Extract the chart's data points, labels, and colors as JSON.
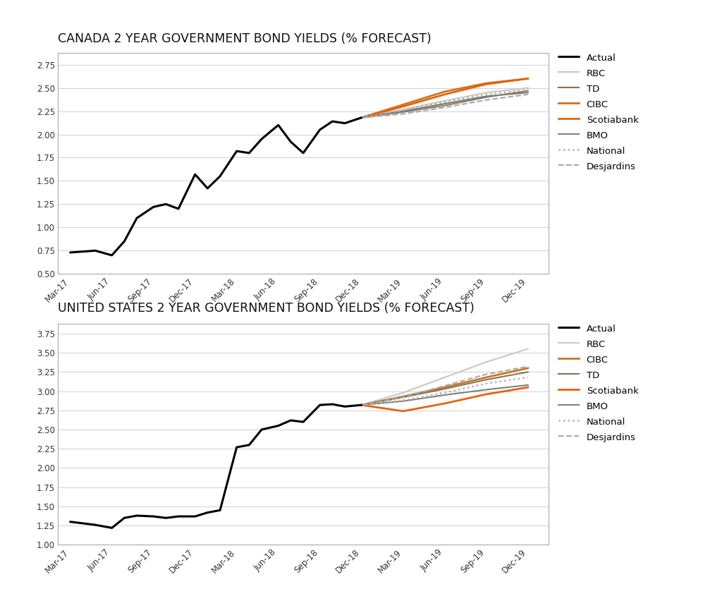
{
  "title1": "CANADA 2 YEAR GOVERNMENT BOND YIELDS (% FORECAST)",
  "title2": "UNITED STATES 2 YEAR GOVERNMENT BOND YIELDS (% FORECAST)",
  "xtick_labels": [
    "Mar-17",
    "Jun-17",
    "Sep-17",
    "Dec-17",
    "Mar-18",
    "Jun-18",
    "Sep-18",
    "Dec-18",
    "Mar-19",
    "Jun-19",
    "Sep-19",
    "Dec-19"
  ],
  "canada": {
    "actual_x": [
      0,
      0.3,
      0.6,
      1.0,
      1.3,
      1.6,
      2.0,
      2.3,
      2.6,
      3.0,
      3.3,
      3.6,
      4.0,
      4.3,
      4.6,
      5.0,
      5.3,
      5.6,
      6.0,
      6.3,
      6.6,
      7.0
    ],
    "actual_y": [
      0.73,
      0.74,
      0.75,
      0.7,
      0.85,
      1.1,
      1.22,
      1.25,
      1.2,
      1.57,
      1.42,
      1.55,
      1.82,
      1.8,
      1.95,
      2.1,
      1.92,
      1.8,
      2.05,
      2.14,
      2.12,
      2.18
    ],
    "forecasts": {
      "RBC": {
        "x": [
          7.0,
          8.0,
          9.0,
          10.0,
          11.0
        ],
        "y": [
          2.18,
          2.27,
          2.36,
          2.45,
          2.5
        ],
        "color": "#c8c8c8",
        "ls": "solid",
        "lw": 1.5
      },
      "TD": {
        "x": [
          7.0,
          8.0,
          9.0,
          10.0,
          11.0
        ],
        "y": [
          2.18,
          2.25,
          2.33,
          2.41,
          2.45
        ],
        "color": "#8b7355",
        "ls": "solid",
        "lw": 1.5
      },
      "CIBC": {
        "x": [
          7.0,
          8.0,
          9.0,
          10.0,
          11.0
        ],
        "y": [
          2.18,
          2.32,
          2.46,
          2.55,
          2.6
        ],
        "color": "#c87722",
        "ls": "solid",
        "lw": 2.0
      },
      "Scotiabank": {
        "x": [
          7.0,
          8.0,
          9.0,
          10.0,
          11.0
        ],
        "y": [
          2.18,
          2.3,
          2.43,
          2.54,
          2.6
        ],
        "color": "#e8620a",
        "ls": "solid",
        "lw": 2.0
      },
      "BMO": {
        "x": [
          7.0,
          8.0,
          9.0,
          10.0,
          11.0
        ],
        "y": [
          2.18,
          2.24,
          2.31,
          2.4,
          2.47
        ],
        "color": "#808080",
        "ls": "solid",
        "lw": 1.5
      },
      "National": {
        "x": [
          7.0,
          8.0,
          9.0,
          10.0,
          11.0
        ],
        "y": [
          2.18,
          2.26,
          2.35,
          2.43,
          2.48
        ],
        "color": "#b0b0b0",
        "ls": "dotted",
        "lw": 1.8
      },
      "Desjardins": {
        "x": [
          7.0,
          8.0,
          9.0,
          10.0,
          11.0
        ],
        "y": [
          2.18,
          2.22,
          2.29,
          2.37,
          2.43
        ],
        "color": "#a8a8a8",
        "ls": "dashed",
        "lw": 1.5
      }
    },
    "ylim": [
      0.5,
      2.875
    ],
    "yticks": [
      0.5,
      0.75,
      1.0,
      1.25,
      1.5,
      1.75,
      2.0,
      2.25,
      2.5,
      2.75
    ]
  },
  "us": {
    "actual_x": [
      0,
      0.3,
      0.6,
      1.0,
      1.3,
      1.6,
      2.0,
      2.3,
      2.6,
      3.0,
      3.3,
      3.6,
      4.0,
      4.3,
      4.6,
      5.0,
      5.3,
      5.6,
      6.0,
      6.3,
      6.6,
      7.0
    ],
    "actual_y": [
      1.3,
      1.28,
      1.26,
      1.22,
      1.35,
      1.38,
      1.37,
      1.35,
      1.37,
      1.37,
      1.42,
      1.45,
      2.27,
      2.3,
      2.5,
      2.55,
      2.62,
      2.6,
      2.82,
      2.83,
      2.8,
      2.82
    ],
    "forecasts": {
      "RBC": {
        "x": [
          7.0,
          8.0,
          9.0,
          10.0,
          11.0
        ],
        "y": [
          2.82,
          2.98,
          3.18,
          3.38,
          3.55
        ],
        "color": "#c8c8c8",
        "ls": "solid",
        "lw": 1.5
      },
      "CIBC": {
        "x": [
          7.0,
          8.0,
          9.0,
          10.0,
          11.0
        ],
        "y": [
          2.82,
          2.93,
          3.05,
          3.18,
          3.3
        ],
        "color": "#c87722",
        "ls": "solid",
        "lw": 2.0
      },
      "TD": {
        "x": [
          7.0,
          8.0,
          9.0,
          10.0,
          11.0
        ],
        "y": [
          2.82,
          2.92,
          3.03,
          3.15,
          3.25
        ],
        "color": "#8b7355",
        "ls": "solid",
        "lw": 1.5
      },
      "Scotiabank": {
        "x": [
          7.0,
          8.0,
          9.0,
          10.0,
          11.0
        ],
        "y": [
          2.82,
          2.74,
          2.84,
          2.96,
          3.05
        ],
        "color": "#e8620a",
        "ls": "solid",
        "lw": 2.0
      },
      "BMO": {
        "x": [
          7.0,
          8.0,
          9.0,
          10.0,
          11.0
        ],
        "y": [
          2.82,
          2.87,
          2.95,
          3.02,
          3.08
        ],
        "color": "#808080",
        "ls": "solid",
        "lw": 1.5
      },
      "National": {
        "x": [
          7.0,
          8.0,
          9.0,
          10.0,
          11.0
        ],
        "y": [
          2.82,
          2.88,
          2.98,
          3.1,
          3.18
        ],
        "color": "#b0b0b0",
        "ls": "dotted",
        "lw": 1.8
      },
      "Desjardins": {
        "x": [
          7.0,
          8.0,
          9.0,
          10.0,
          11.0
        ],
        "y": [
          2.82,
          2.92,
          3.07,
          3.22,
          3.32
        ],
        "color": "#a8a8a8",
        "ls": "dashed",
        "lw": 1.5
      }
    },
    "ylim": [
      1.0,
      3.875
    ],
    "yticks": [
      1.0,
      1.25,
      1.5,
      1.75,
      2.0,
      2.25,
      2.5,
      2.75,
      3.0,
      3.25,
      3.5,
      3.75
    ]
  },
  "canada_legend_order": [
    "Actual",
    "RBC",
    "TD",
    "CIBC",
    "Scotiabank",
    "BMO",
    "National",
    "Desjardins"
  ],
  "us_legend_order": [
    "Actual",
    "RBC",
    "CIBC",
    "TD",
    "Scotiabank",
    "BMO",
    "National",
    "Desjardins"
  ],
  "actual_color": "#000000",
  "actual_lw": 2.2,
  "background_color": "#ffffff",
  "title_fontsize": 12.5,
  "legend_fontsize": 9.5,
  "tick_fontsize": 8.5
}
